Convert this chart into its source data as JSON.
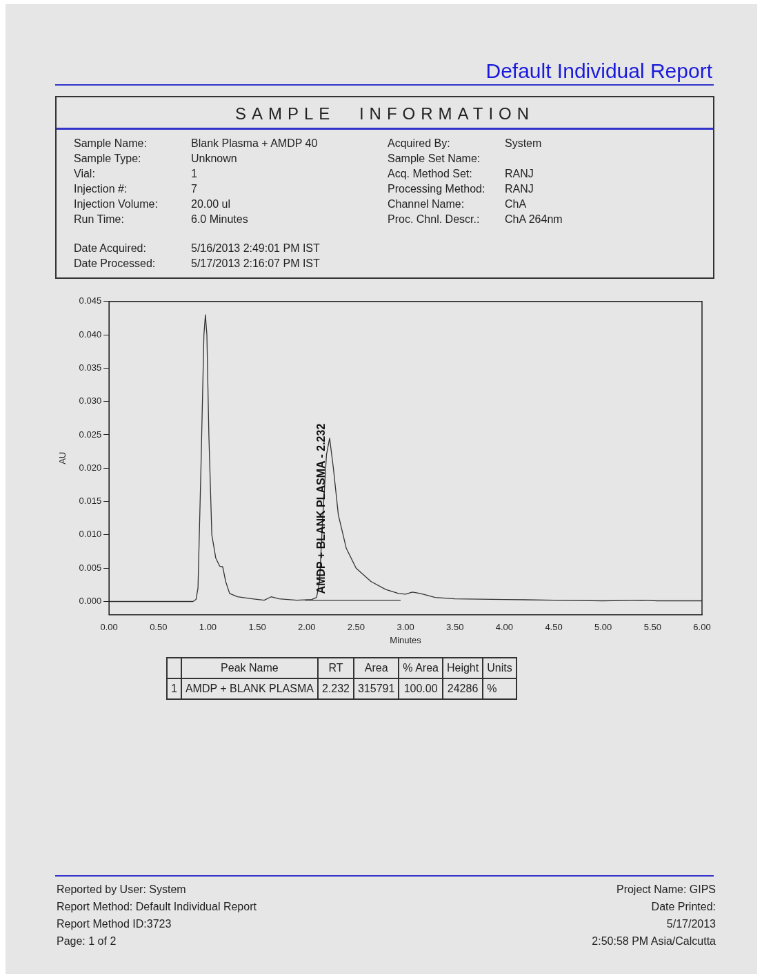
{
  "chart_data": {
    "type": "line",
    "title": "Default Individual Report",
    "subtitle": "SAMPLE INFORMATION",
    "xlabel": "Minutes",
    "ylabel": "AU",
    "xlim": [
      0,
      6
    ],
    "xticks": [
      {
        "value": 0,
        "label": "0.00"
      },
      {
        "value": 0.5,
        "label": "0.50"
      },
      {
        "value": 1,
        "label": "1.00"
      },
      {
        "value": 1.5,
        "label": "1.50"
      },
      {
        "value": 2,
        "label": "2.00"
      },
      {
        "value": 2.5,
        "label": "2.50"
      },
      {
        "value": 3,
        "label": "3.00"
      },
      {
        "value": 3.5,
        "label": "3.50"
      },
      {
        "value": 4,
        "label": "4.00"
      },
      {
        "value": 4.5,
        "label": "4.50"
      },
      {
        "value": 5,
        "label": "5.00"
      },
      {
        "value": 5.5,
        "label": "5.50"
      },
      {
        "value": 6,
        "label": "6.00"
      }
    ],
    "ylim": [
      -0.002,
      0.045
    ],
    "yticks": [
      {
        "value": 0,
        "label": "0.000"
      },
      {
        "value": 0.005,
        "label": "0.005"
      },
      {
        "value": 0.01,
        "label": "0.010"
      },
      {
        "value": 0.015,
        "label": "0.015"
      },
      {
        "value": 0.02,
        "label": "0.020"
      },
      {
        "value": 0.025,
        "label": "0.025"
      },
      {
        "value": 0.03,
        "label": "0.030"
      },
      {
        "value": 0.035,
        "label": "0.035"
      },
      {
        "value": 0.04,
        "label": "0.040"
      },
      {
        "value": 0.045,
        "label": "0.045"
      }
    ],
    "grid": false,
    "legend": false,
    "marker": "none",
    "line_style": "solid",
    "series": [
      {
        "color": "#333333",
        "x": [
          0,
          0.85,
          0.88,
          0.9,
          0.93,
          0.96,
          0.975,
          0.99,
          1.01,
          1.04,
          1.08,
          1.12,
          1.15,
          1.18,
          1.22,
          1.3,
          1.45,
          1.57,
          1.64,
          1.72,
          1.9,
          2.05,
          2.1,
          2.13,
          2.16,
          2.2,
          2.232,
          2.27,
          2.32,
          2.4,
          2.5,
          2.65,
          2.8,
          2.93,
          3,
          3.07,
          3.15,
          3.3,
          3.5,
          4,
          4.5,
          5,
          5.4,
          5.55,
          6
        ],
        "values": [
          0,
          0,
          0.0003,
          0.002,
          0.02,
          0.04,
          0.043,
          0.04,
          0.025,
          0.01,
          0.0065,
          0.0053,
          0.0052,
          0.003,
          0.0012,
          0.0007,
          0.0004,
          0.0002,
          0.0007,
          0.0004,
          0.0002,
          0.0003,
          0.0006,
          0.003,
          0.012,
          0.022,
          0.0245,
          0.02,
          0.013,
          0.008,
          0.005,
          0.003,
          0.0018,
          0.0012,
          0.0011,
          0.0014,
          0.0012,
          0.0006,
          0.0004,
          0.0003,
          0.0002,
          0.0001,
          0.0002,
          0.0001,
          0.0001
        ]
      },
      {
        "color": "#333333",
        "x": [
          1.98,
          2.95
        ],
        "values": [
          0.0002,
          0.0002
        ]
      }
    ],
    "annotations": [
      {
        "text": "AMDP + BLANK PLASMA - 2.232",
        "x": 2.232,
        "y": 0.0245
      },
      "Sample Name: Blank Plasma + AMDP 40",
      "Sample Type: Unknown",
      "Vial: 1",
      "Injection #: 7",
      "Injection Volume: 20.00 ul",
      "Run Time: 6.0 Minutes",
      "Date Acquired: 5/16/2013 2:49:01 PM IST",
      "Date Processed: 5/17/2013 2:16:07 PM IST",
      "Acquired By: System",
      "Sample Set Name:",
      "Acq. Method Set: RANJ",
      "Processing Method: RANJ",
      "Channel Name: ChA",
      "Proc. Chnl. Descr.: ChA 264nm",
      "Peak Name",
      "RT",
      "Area",
      "% Area",
      "Height",
      "Units",
      "1",
      "AMDP + BLANK PLASMA",
      "2.232",
      "315791",
      "100.00",
      "24286",
      "%",
      "Reported by User: System",
      "Report Method: Default Individual Report",
      "Report Method ID:3723",
      "Page: 1 of 2",
      "Project Name: GIPS",
      "Date Printed:",
      "5/17/2013",
      "2:50:58 PM Asia/Calcutta"
    ]
  }
}
